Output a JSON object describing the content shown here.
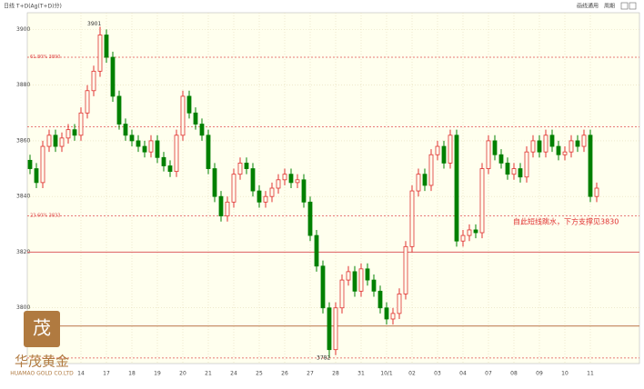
{
  "header": {
    "title": "日线 T+D(Ag(T+D)分)",
    "buttons": [
      "画线通用",
      "周期"
    ]
  },
  "branding": {
    "name": "华茂黄金",
    "subtitle": "HUAMAO GOLD CO.LTD"
  },
  "chart_data": {
    "type": "candlestick",
    "up_color": "#e03030",
    "down_color": "#008000",
    "ylim": [
      3780,
      3906
    ],
    "yticks": [
      3800,
      3820,
      3840,
      3860,
      3880,
      3900
    ],
    "grid": true,
    "xticks": [
      {
        "value": 8,
        "label": "14"
      },
      {
        "value": 12,
        "label": "17"
      },
      {
        "value": 16,
        "label": "18"
      },
      {
        "value": 20,
        "label": "19"
      },
      {
        "value": 24,
        "label": "20"
      },
      {
        "value": 28,
        "label": "21"
      },
      {
        "value": 32,
        "label": "24"
      },
      {
        "value": 36,
        "label": "25"
      },
      {
        "value": 40,
        "label": "26"
      },
      {
        "value": 44,
        "label": "27"
      },
      {
        "value": 48,
        "label": "28"
      },
      {
        "value": 52,
        "label": "31"
      },
      {
        "value": 56,
        "label": "10/1"
      },
      {
        "value": 60,
        "label": "02"
      },
      {
        "value": 64,
        "label": "03"
      },
      {
        "value": 68,
        "label": "04"
      },
      {
        "value": 72,
        "label": "07"
      },
      {
        "value": 76,
        "label": "08"
      },
      {
        "value": 80,
        "label": "09"
      },
      {
        "value": 84,
        "label": "10"
      },
      {
        "value": 88,
        "label": "11"
      }
    ],
    "open": [
      3853,
      3850,
      3845,
      3858,
      3862,
      3858,
      3861,
      3864,
      3862,
      3870,
      3878,
      3885,
      3898,
      3890,
      3876,
      3866,
      3862,
      3860,
      3858,
      3856,
      3860,
      3854,
      3851,
      3849,
      3862,
      3876,
      3870,
      3866,
      3862,
      3850,
      3840,
      3833,
      3838,
      3848,
      3852,
      3850,
      3842,
      3838,
      3840,
      3843,
      3846,
      3848,
      3845,
      3846,
      3838,
      3826,
      3815,
      3800,
      3785,
      3800,
      3810,
      3813,
      3806,
      3814,
      3810,
      3806,
      3800,
      3796,
      3798,
      3805,
      3822,
      3842,
      3848,
      3844,
      3855,
      3858,
      3852,
      3862,
      3824,
      3826,
      3828,
      3827,
      3850,
      3860,
      3855,
      3852,
      3848,
      3850,
      3847,
      3856,
      3860,
      3856,
      3862,
      3858,
      3855,
      3856,
      3860,
      3858,
      3862,
      3840
    ],
    "high": [
      3855,
      3852,
      3860,
      3864,
      3864,
      3863,
      3866,
      3866,
      3872,
      3880,
      3887,
      3901,
      3900,
      3892,
      3878,
      3868,
      3864,
      3862,
      3860,
      3862,
      3862,
      3856,
      3853,
      3864,
      3878,
      3878,
      3872,
      3868,
      3864,
      3852,
      3842,
      3840,
      3850,
      3854,
      3854,
      3852,
      3844,
      3842,
      3845,
      3848,
      3850,
      3850,
      3848,
      3848,
      3840,
      3828,
      3817,
      3802,
      3802,
      3812,
      3815,
      3815,
      3816,
      3816,
      3812,
      3808,
      3802,
      3800,
      3807,
      3824,
      3844,
      3850,
      3850,
      3857,
      3860,
      3860,
      3864,
      3864,
      3828,
      3830,
      3830,
      3852,
      3862,
      3862,
      3857,
      3854,
      3852,
      3852,
      3858,
      3862,
      3862,
      3864,
      3864,
      3860,
      3858,
      3862,
      3862,
      3864,
      3864,
      3845
    ],
    "low": [
      3848,
      3843,
      3843,
      3856,
      3856,
      3856,
      3859,
      3860,
      3860,
      3868,
      3876,
      3883,
      3888,
      3874,
      3864,
      3860,
      3858,
      3856,
      3854,
      3854,
      3852,
      3849,
      3847,
      3847,
      3860,
      3868,
      3864,
      3860,
      3848,
      3838,
      3831,
      3831,
      3836,
      3846,
      3848,
      3840,
      3836,
      3836,
      3838,
      3841,
      3844,
      3843,
      3843,
      3836,
      3824,
      3813,
      3798,
      3782,
      3783,
      3798,
      3808,
      3804,
      3804,
      3808,
      3804,
      3798,
      3794,
      3794,
      3796,
      3803,
      3820,
      3840,
      3842,
      3842,
      3853,
      3850,
      3850,
      3822,
      3822,
      3824,
      3825,
      3825,
      3848,
      3853,
      3850,
      3846,
      3846,
      3845,
      3845,
      3854,
      3854,
      3854,
      3856,
      3853,
      3853,
      3854,
      3856,
      3856,
      3838,
      3838
    ],
    "close": [
      3850,
      3845,
      3858,
      3862,
      3858,
      3861,
      3864,
      3862,
      3870,
      3878,
      3885,
      3898,
      3890,
      3876,
      3866,
      3862,
      3860,
      3858,
      3856,
      3860,
      3854,
      3851,
      3849,
      3862,
      3876,
      3870,
      3866,
      3862,
      3850,
      3840,
      3833,
      3838,
      3848,
      3852,
      3850,
      3842,
      3838,
      3840,
      3843,
      3846,
      3848,
      3845,
      3846,
      3838,
      3826,
      3815,
      3800,
      3785,
      3800,
      3810,
      3813,
      3806,
      3814,
      3810,
      3806,
      3800,
      3796,
      3798,
      3805,
      3822,
      3842,
      3848,
      3844,
      3855,
      3858,
      3852,
      3862,
      3824,
      3826,
      3828,
      3827,
      3850,
      3860,
      3855,
      3852,
      3848,
      3850,
      3847,
      3856,
      3860,
      3856,
      3862,
      3858,
      3855,
      3856,
      3860,
      3858,
      3862,
      3840,
      3843
    ],
    "levels": [
      {
        "value": 3890,
        "label": "61.80% 3890",
        "style": "dashed",
        "color": "#e05050"
      },
      {
        "value": 3865,
        "style": "dashed",
        "color": "#e05050"
      },
      {
        "value": 3833,
        "label": "23.60% 3833",
        "style": "dashed",
        "color": "#e05050"
      },
      {
        "value": 3820,
        "style": "solid",
        "color": "#e07070"
      },
      {
        "value": 3793.5,
        "style": "solid",
        "color": "#c8906a"
      },
      {
        "value": 3782,
        "style": "dashed",
        "color": "#e05050"
      }
    ],
    "annotations": [
      {
        "text": "3901",
        "index": 11,
        "value": 3901
      },
      {
        "text": "3782",
        "index": 47,
        "value": 3782
      },
      {
        "text": "自此短线跳水，下方支撑见3830",
        "index": 77,
        "value": 3831,
        "color": "#e03030"
      }
    ]
  }
}
